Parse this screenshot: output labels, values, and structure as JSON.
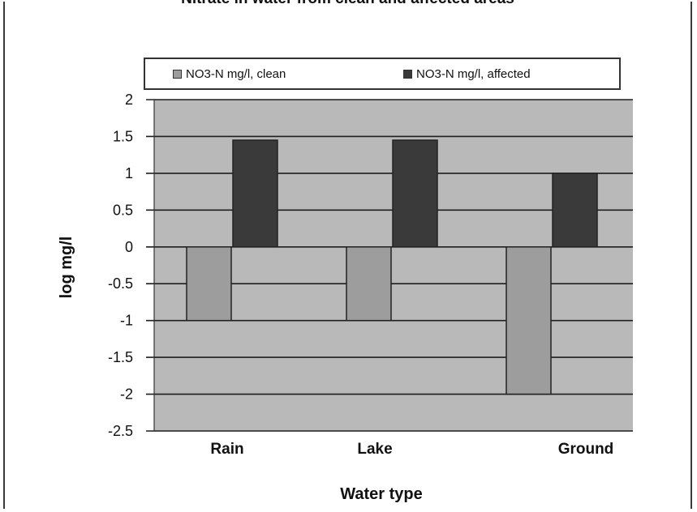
{
  "chart_data": {
    "type": "bar",
    "title": "Nitrate in water from clean and affected areas",
    "xlabel": "Water type",
    "ylabel": "log mg/l",
    "categories": [
      "Rain",
      "Lake",
      "Ground"
    ],
    "series": [
      {
        "name": "NO3-N mg/l, clean",
        "values": [
          -1,
          -1,
          -2
        ],
        "color": "#9d9d9d"
      },
      {
        "name": "NO3-N mg/l, affected",
        "values": [
          1.45,
          1.45,
          1.0
        ],
        "color": "#3a3a3a"
      }
    ],
    "ylim": [
      -2.5,
      2
    ],
    "yticks": [
      "2",
      "1.5",
      "1",
      "0.5",
      "0",
      "-0.5",
      "-1",
      "-1.5",
      "-2",
      "-2.5"
    ],
    "grid": true,
    "legend_position": "top",
    "plot_background": "#b9b9b9"
  }
}
